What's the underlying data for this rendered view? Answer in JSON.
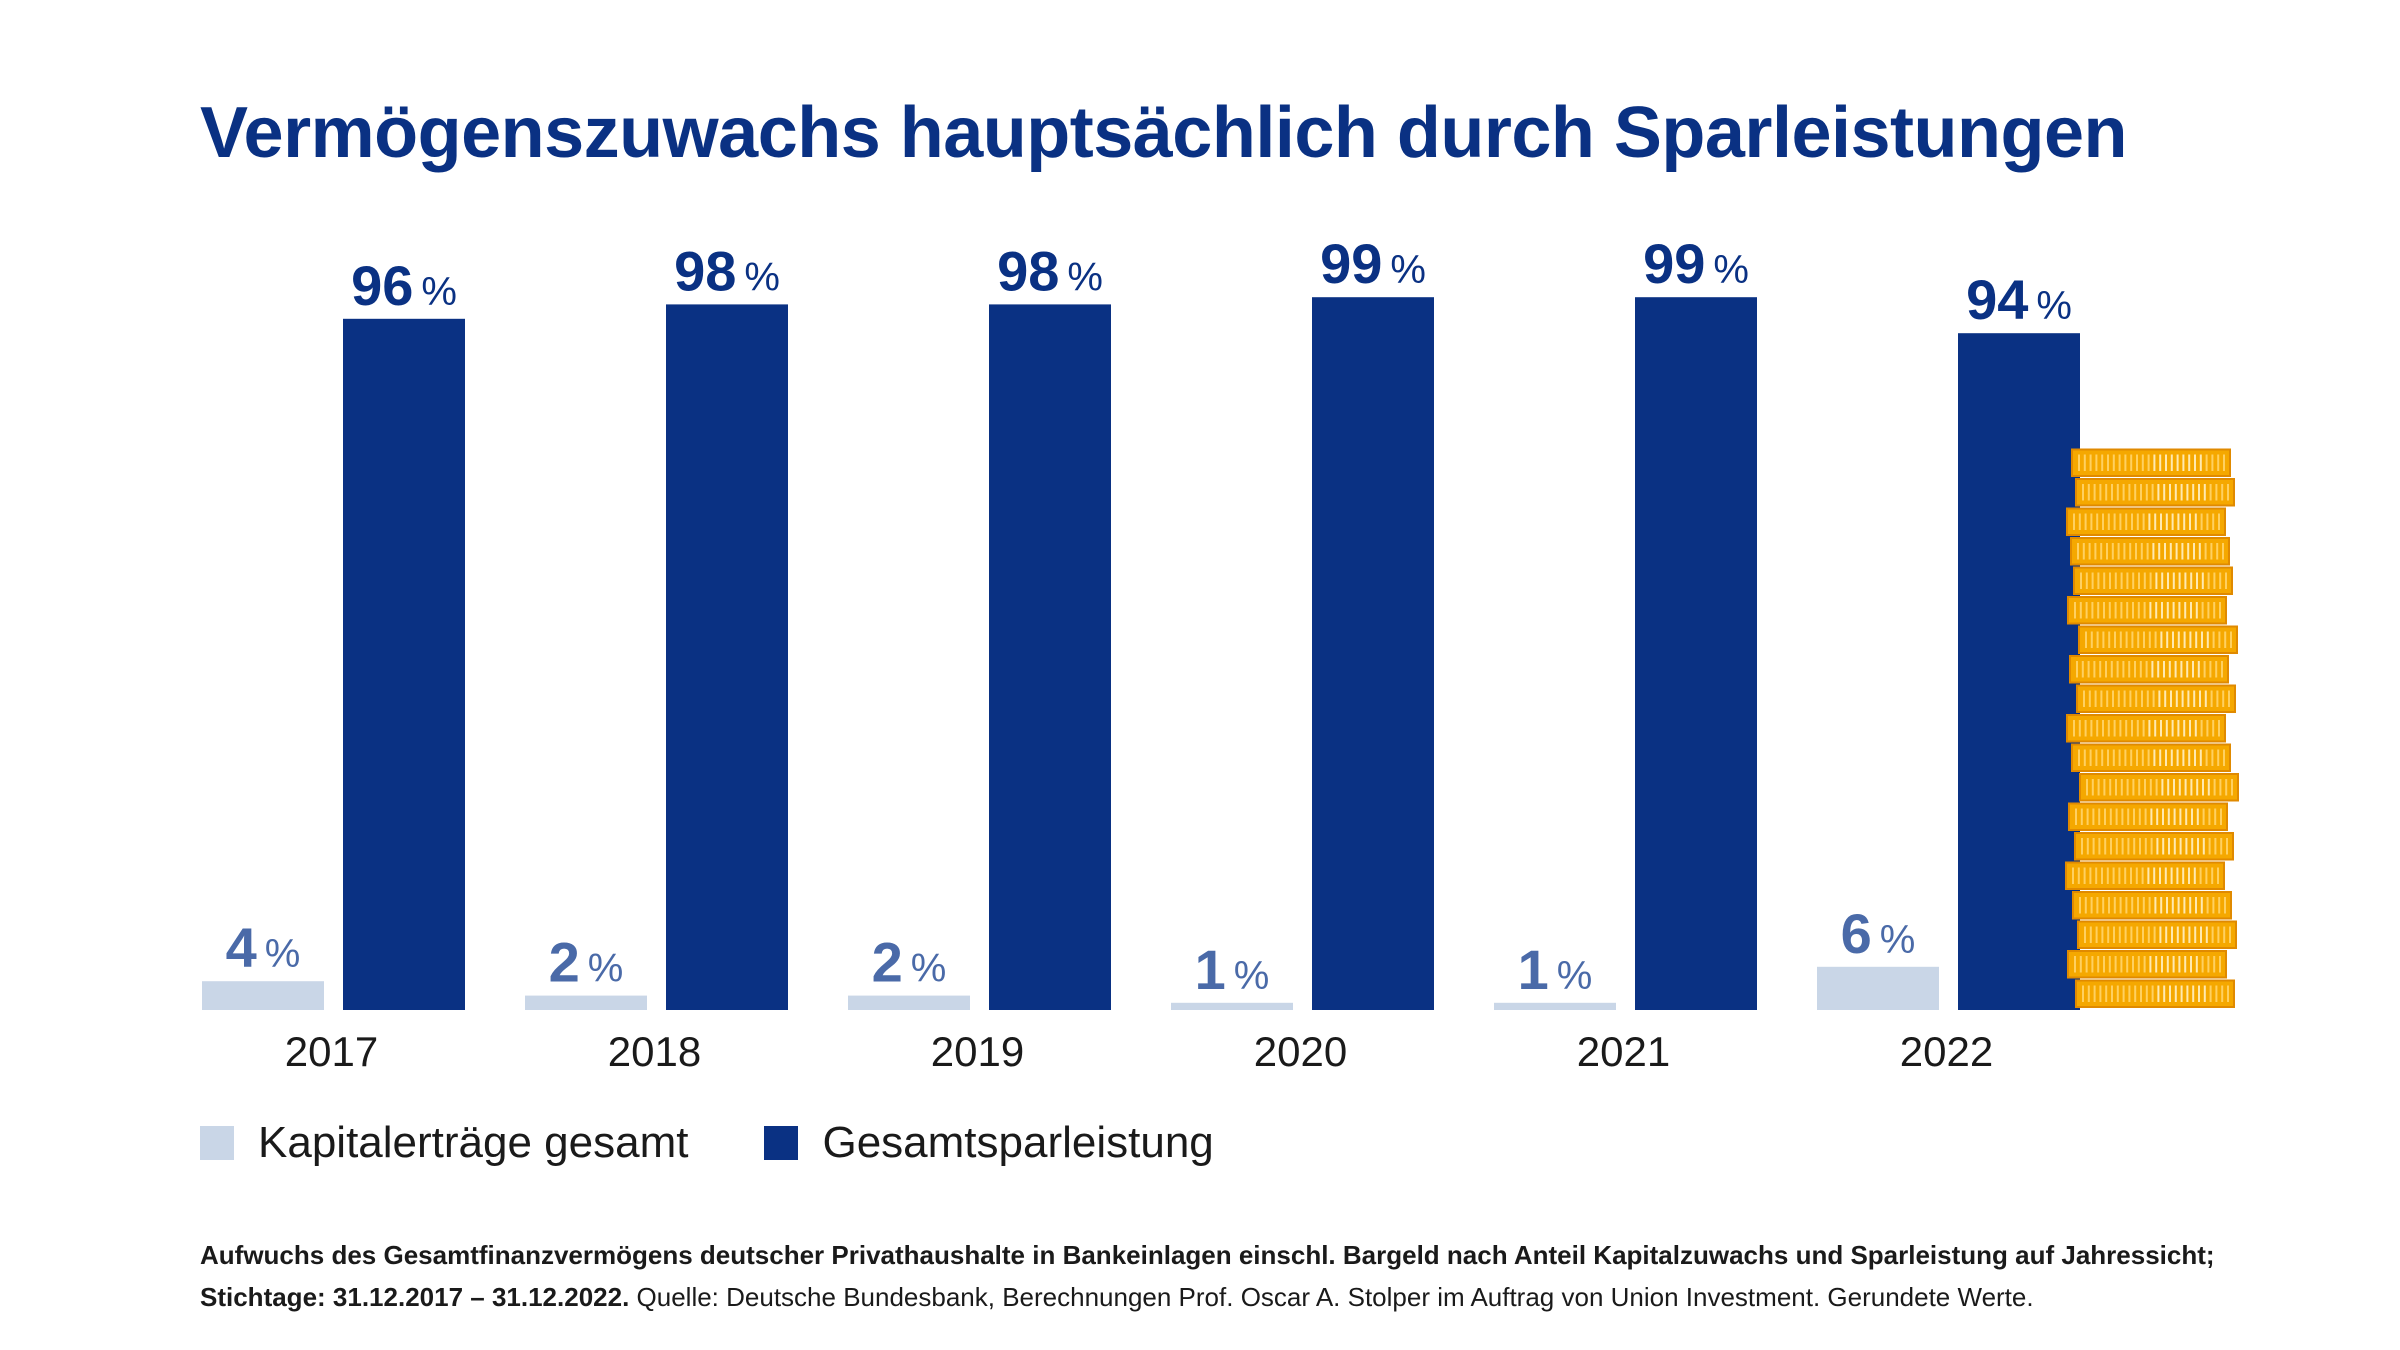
{
  "title": "Vermögenszuwachs hauptsächlich durch Sparleistungen",
  "chart_data": {
    "type": "bar",
    "categories": [
      "2017",
      "2018",
      "2019",
      "2020",
      "2021",
      "2022"
    ],
    "series": [
      {
        "name": "Kapitalerträge gesamt",
        "values": [
          4,
          2,
          2,
          1,
          1,
          6
        ],
        "color": "#c9d6e7",
        "label_color": "#4a6aa8"
      },
      {
        "name": "Gesamtsparleistung",
        "values": [
          96,
          98,
          98,
          99,
          99,
          94
        ],
        "color": "#0a3183",
        "label_color": "#0a3183"
      }
    ],
    "unit": "%",
    "ylim": [
      0,
      100
    ],
    "grid": false,
    "legend": "bottom-left"
  },
  "legend": {
    "items": [
      {
        "label": "Kapitalerträge gesamt",
        "color": "#c9d6e7"
      },
      {
        "label": "Gesamtsparleistung",
        "color": "#0a3183"
      }
    ]
  },
  "footnote": {
    "bold_text": "Aufwuchs des Gesamtfinanzvermögens deutscher Privathaushalte in Bankeinlagen einschl. Bargeld nach Anteil Kapitalzuwachs und Sparleistung auf Jahres­sicht; Stichtage: 31.12.2017 – 31.12.2022.",
    "normal_text": " Quelle: Deutsche Bundesbank, Berechnungen Prof. Oscar A. Stolper im Auftrag von Union Investment. Gerundete Werte."
  },
  "decoration": {
    "coin_stack_icon": "coin-stack-icon",
    "coin_color": "#f5a800"
  }
}
